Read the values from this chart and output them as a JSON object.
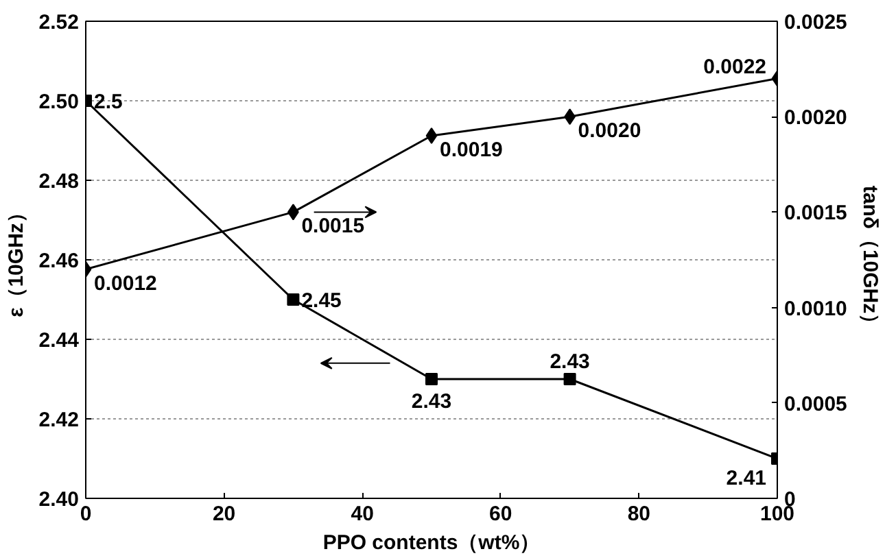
{
  "chart_data": {
    "type": "line",
    "xlabel": "PPO contents（wt%）",
    "ylabel": "ε（10GHz）",
    "y2label": "tanδ（10GHz）",
    "x": [
      0,
      30,
      50,
      70,
      100
    ],
    "xlim": [
      0,
      100
    ],
    "xticks": [
      0,
      20,
      40,
      60,
      80,
      100
    ],
    "ylim": [
      2.4,
      2.52
    ],
    "yticks": [
      {
        "value": 2.4,
        "label": "2.40"
      },
      {
        "value": 2.42,
        "label": "2.42"
      },
      {
        "value": 2.44,
        "label": "2.44"
      },
      {
        "value": 2.46,
        "label": "2.46"
      },
      {
        "value": 2.48,
        "label": "2.48"
      },
      {
        "value": 2.5,
        "label": "2.50"
      },
      {
        "value": 2.52,
        "label": "2.52"
      }
    ],
    "y2lim": [
      0,
      0.0025
    ],
    "y2ticks": [
      0,
      {
        "value": 0.0005,
        "label": "0.0005"
      },
      {
        "value": 0.001,
        "label": "0.0010"
      },
      {
        "value": 0.0015,
        "label": "0.0015"
      },
      {
        "value": 0.002,
        "label": "0.0020"
      },
      {
        "value": 0.0025,
        "label": "0.0025"
      }
    ],
    "grid": "y",
    "line_style": "solid",
    "series": [
      {
        "color": "#000000",
        "marker": "square",
        "values": [
          2.5,
          2.45,
          2.43,
          2.43,
          2.41
        ],
        "value_labels": [
          "2.5",
          "2.45",
          "2.43",
          "2.43",
          "2.41"
        ]
      },
      {
        "color": "#000000",
        "marker": "diamond",
        "axis": "y2",
        "values": [
          0.0012,
          0.0015,
          0.0019,
          0.002,
          0.0022
        ],
        "value_labels": [
          "0.0012",
          "0.0015",
          "0.0019",
          "0.0020",
          "0.0022"
        ]
      }
    ]
  }
}
